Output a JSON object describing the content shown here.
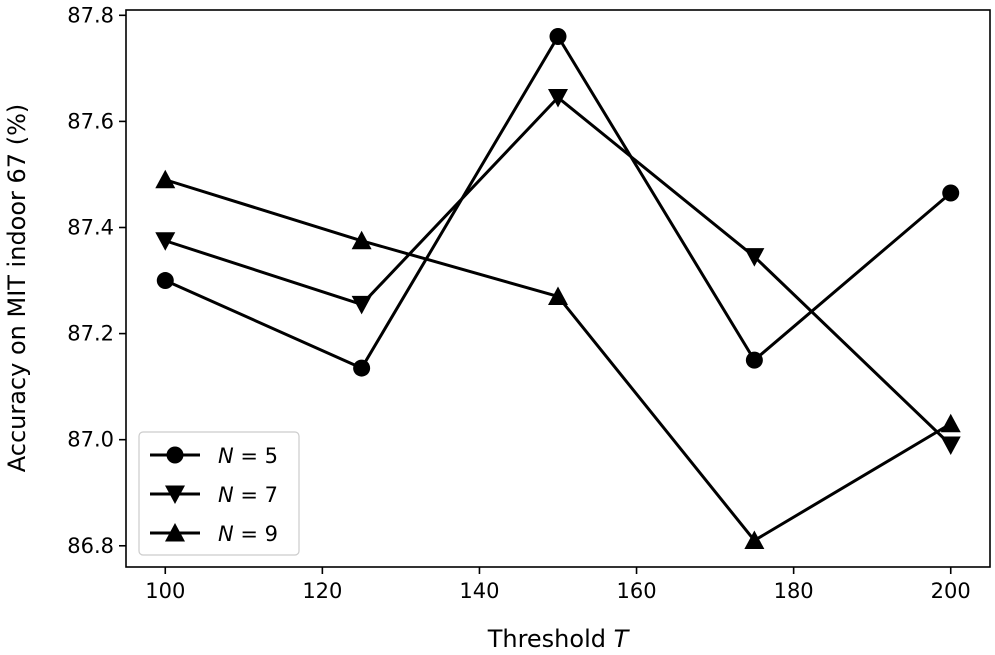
{
  "chart_data": {
    "type": "line",
    "title": "",
    "xlabel": "Threshold",
    "xlabel_var": "T",
    "ylabel": "Accuracy on MIT indoor 67 (%)",
    "x": [
      100,
      125,
      150,
      175,
      200
    ],
    "xlim": [
      95,
      205
    ],
    "ylim": [
      86.76,
      87.81
    ],
    "xticks": [
      100,
      120,
      140,
      160,
      180,
      200
    ],
    "xtick_labels": [
      "100",
      "120",
      "140",
      "160",
      "180",
      "200"
    ],
    "yticks": [
      86.8,
      87.0,
      87.2,
      87.4,
      87.6,
      87.8
    ],
    "ytick_labels": [
      "86.8",
      "87.0",
      "87.2",
      "87.4",
      "87.6",
      "87.8"
    ],
    "grid": false,
    "legend_position": "lower-left",
    "series": [
      {
        "name": "N = 5",
        "var": "N",
        "op": " = ",
        "num": "5",
        "marker": "circle",
        "color": "#000000",
        "values": [
          87.3,
          87.135,
          87.76,
          87.15,
          87.465
        ]
      },
      {
        "name": "N = 7",
        "var": "N",
        "op": " = ",
        "num": "7",
        "marker": "triangle-down",
        "color": "#000000",
        "values": [
          87.375,
          87.255,
          87.645,
          87.345,
          86.99
        ]
      },
      {
        "name": "N = 9",
        "var": "N",
        "op": " = ",
        "num": "9",
        "marker": "triangle-up",
        "color": "#000000",
        "values": [
          87.49,
          87.375,
          87.27,
          86.81,
          87.03
        ]
      }
    ]
  }
}
